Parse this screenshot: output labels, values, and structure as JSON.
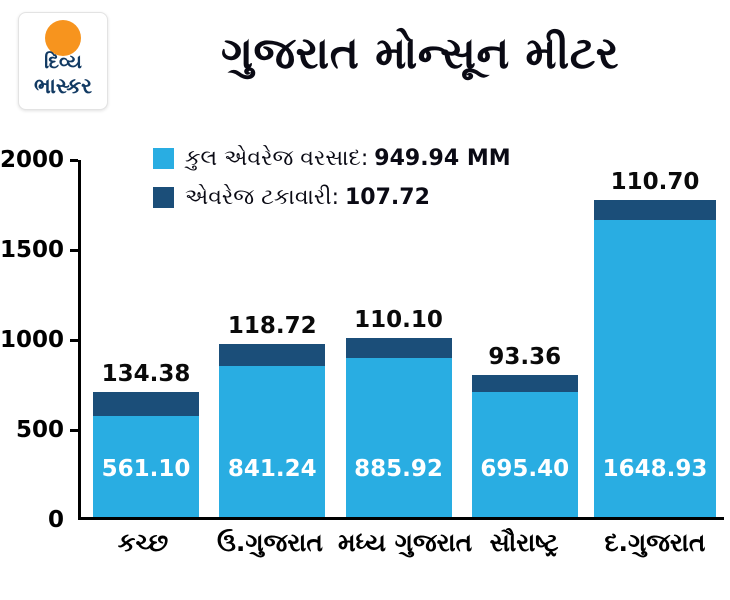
{
  "logo": {
    "line1": "દિવ્ય",
    "line2": "ભાસ્કર"
  },
  "title": "ગુજરાત મોન્સૂન મીટર",
  "legend": [
    {
      "label": "કુલ એવરેજ વરસાદ:",
      "value": "949.94 MM",
      "color": "#29ade2"
    },
    {
      "label": "એવરેજ ટકાવારી:",
      "value": "107.72",
      "color": "#1b4e79"
    }
  ],
  "chart_data": {
    "type": "bar",
    "stacked": true,
    "title": "ગુજરાત મોન્સૂન મીટર",
    "categories": [
      "કચ્છ",
      "ઉ.ગુજરાત",
      "મધ્ય ગુજરાત",
      "સૌરાષ્ટ્ર",
      "દ.ગુજરાત"
    ],
    "series": [
      {
        "name": "કુલ એવરેજ વરસાદ (MM)",
        "color": "#29ade2",
        "values": [
          561.1,
          841.24,
          885.92,
          695.4,
          1648.93
        ]
      },
      {
        "name": "એવરેજ ટકાવારી",
        "color": "#1b4e79",
        "values": [
          134.38,
          118.72,
          110.1,
          93.36,
          110.7
        ]
      }
    ],
    "bar_value_labels": [
      "561.10",
      "841.24",
      "885.92",
      "695.40",
      "1648.93"
    ],
    "top_value_labels": [
      "134.38",
      "118.72",
      "110.10",
      "93.36",
      "110.70"
    ],
    "yticks": [
      "2000",
      "1500",
      "1000",
      "500",
      "0"
    ],
    "ylim": [
      0,
      2000
    ],
    "legend_position": "top-left",
    "grid": false
  }
}
